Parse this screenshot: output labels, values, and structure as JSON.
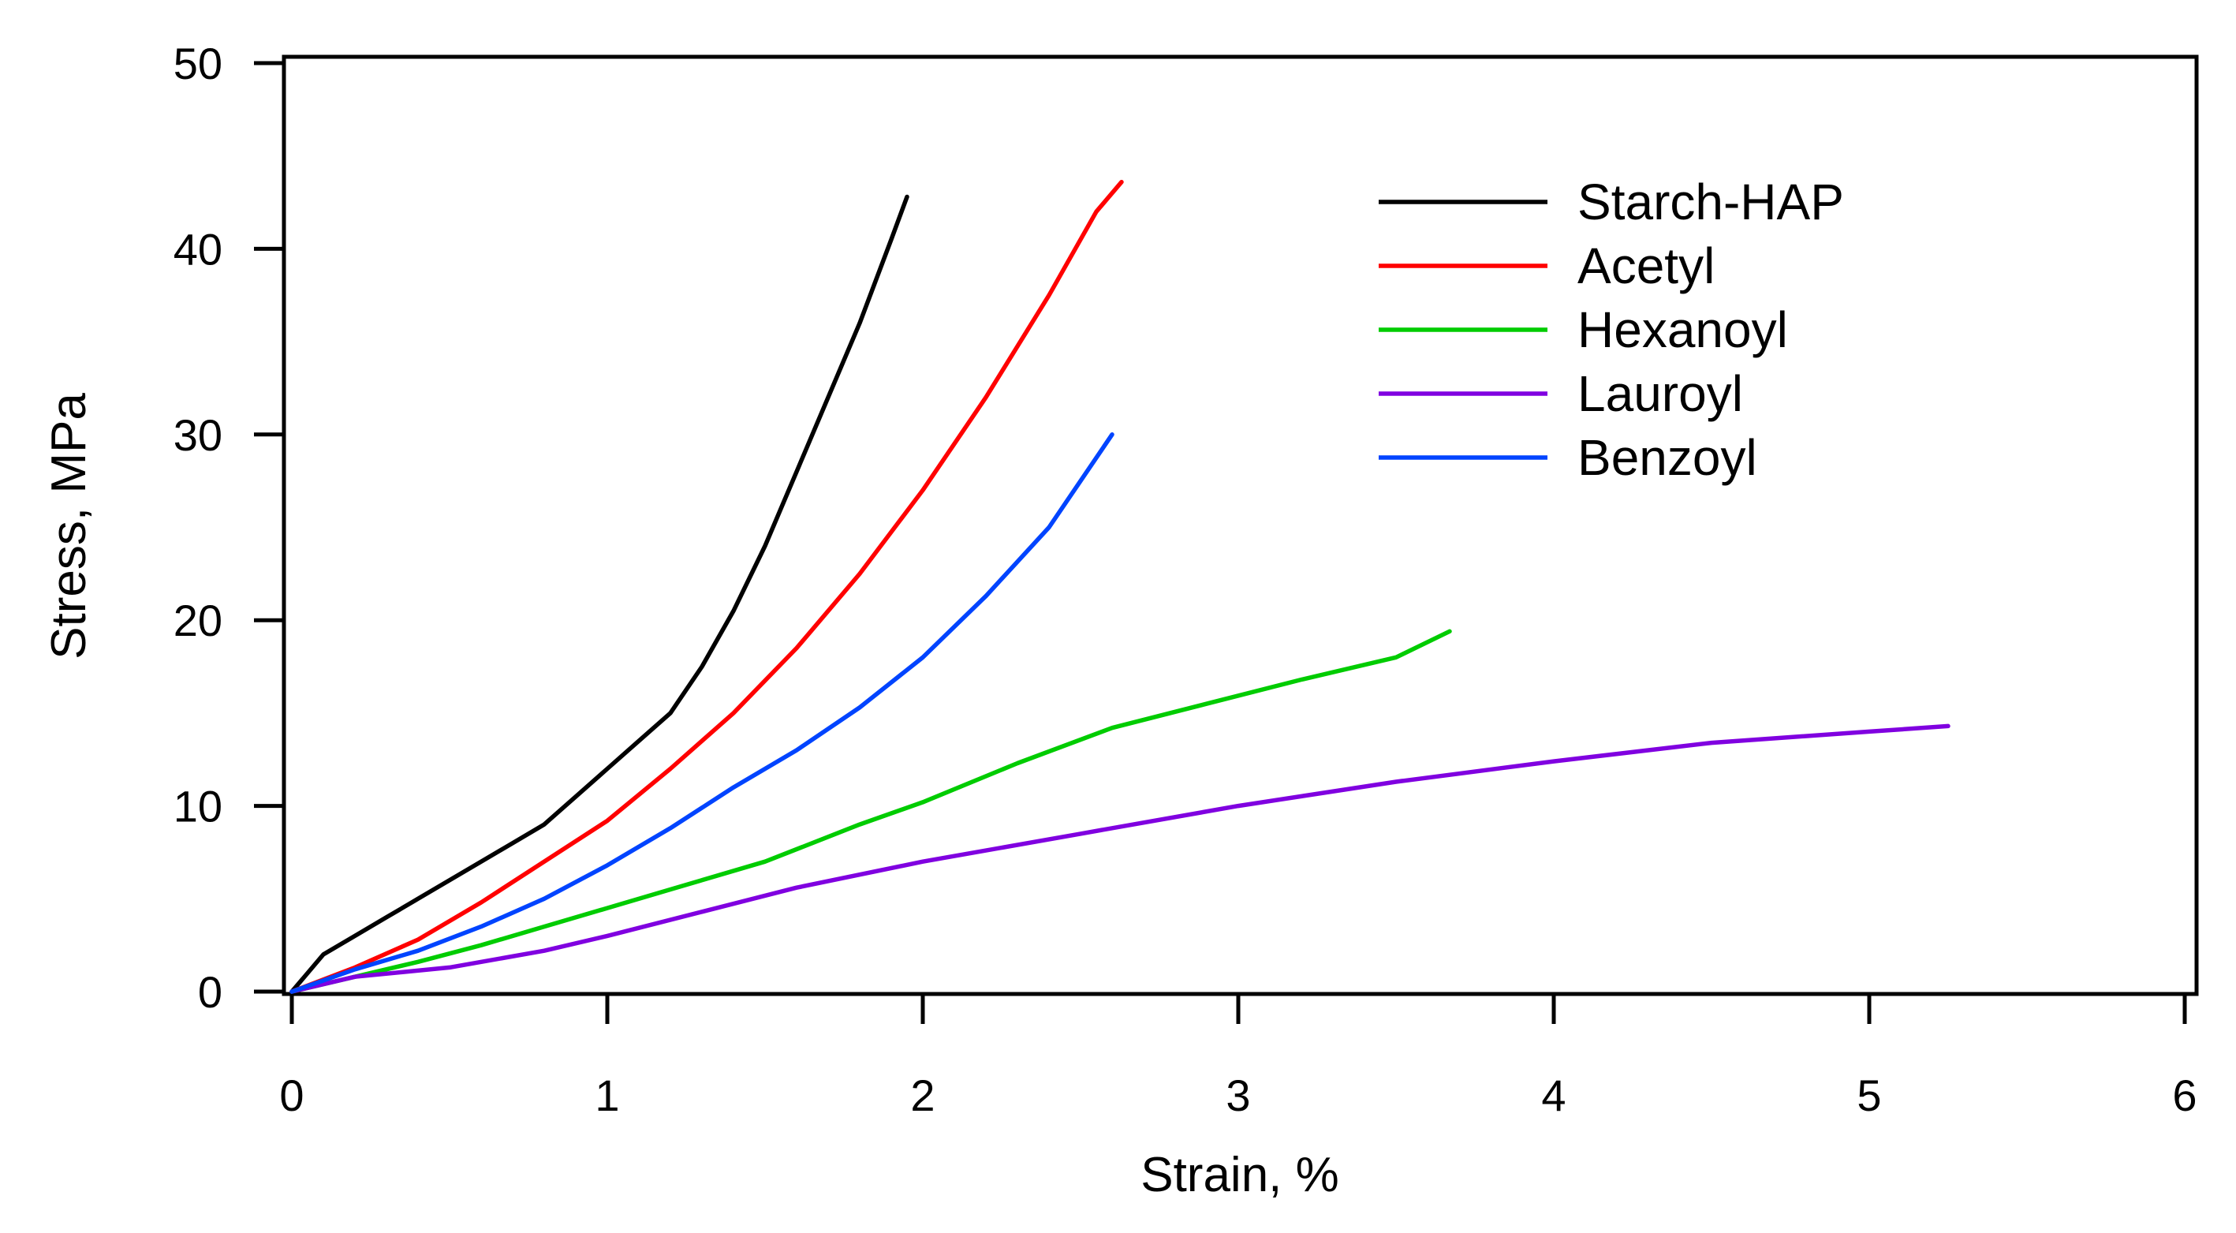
{
  "chart_data": {
    "type": "line",
    "title": "",
    "xlabel": "Strain, %",
    "ylabel": "Stress, MPa",
    "xlim": [
      0,
      6
    ],
    "ylim": [
      0,
      50
    ],
    "xticks": [
      "0",
      "1",
      "2",
      "3",
      "4",
      "5",
      "6"
    ],
    "yticks": [
      "0",
      "10",
      "20",
      "30",
      "40",
      "50"
    ],
    "grid": false,
    "legend_position": "top-right",
    "series": [
      {
        "name": "Starch-HAP",
        "color": "#000000",
        "points": [
          [
            0,
            0
          ],
          [
            0.05,
            1
          ],
          [
            0.1,
            2
          ],
          [
            0.2,
            3
          ],
          [
            0.3,
            4
          ],
          [
            0.4,
            5
          ],
          [
            0.5,
            6
          ],
          [
            0.6,
            7
          ],
          [
            0.7,
            8
          ],
          [
            0.8,
            9
          ],
          [
            0.9,
            10.5
          ],
          [
            1.0,
            12
          ],
          [
            1.1,
            13.5
          ],
          [
            1.2,
            15
          ],
          [
            1.3,
            17.5
          ],
          [
            1.4,
            20.5
          ],
          [
            1.5,
            24
          ],
          [
            1.6,
            28
          ],
          [
            1.7,
            32
          ],
          [
            1.8,
            36
          ],
          [
            1.9,
            40.5
          ],
          [
            1.95,
            42.8
          ]
        ]
      },
      {
        "name": "Acetyl",
        "color": "#ff0000",
        "points": [
          [
            0,
            0
          ],
          [
            0.2,
            1.3
          ],
          [
            0.4,
            2.8
          ],
          [
            0.6,
            4.8
          ],
          [
            0.8,
            7
          ],
          [
            1.0,
            9.2
          ],
          [
            1.2,
            12
          ],
          [
            1.4,
            15
          ],
          [
            1.6,
            18.5
          ],
          [
            1.8,
            22.5
          ],
          [
            2.0,
            27
          ],
          [
            2.2,
            32
          ],
          [
            2.4,
            37.5
          ],
          [
            2.55,
            42
          ],
          [
            2.63,
            43.6
          ]
        ]
      },
      {
        "name": "Hexanoyl",
        "color": "#00cc00",
        "points": [
          [
            0,
            0
          ],
          [
            0.2,
            0.8
          ],
          [
            0.4,
            1.6
          ],
          [
            0.6,
            2.5
          ],
          [
            0.8,
            3.5
          ],
          [
            1.0,
            4.5
          ],
          [
            1.2,
            5.5
          ],
          [
            1.5,
            7
          ],
          [
            1.8,
            9
          ],
          [
            2.0,
            10.2
          ],
          [
            2.3,
            12.3
          ],
          [
            2.6,
            14.2
          ],
          [
            2.9,
            15.5
          ],
          [
            3.2,
            16.8
          ],
          [
            3.5,
            18
          ],
          [
            3.67,
            19.4
          ]
        ]
      },
      {
        "name": "Lauroyl",
        "color": "#8000e0",
        "points": [
          [
            0,
            0
          ],
          [
            0.2,
            0.8
          ],
          [
            0.5,
            1.3
          ],
          [
            0.8,
            2.2
          ],
          [
            1.0,
            3
          ],
          [
            1.3,
            4.3
          ],
          [
            1.6,
            5.6
          ],
          [
            2.0,
            7
          ],
          [
            2.5,
            8.5
          ],
          [
            3.0,
            10
          ],
          [
            3.5,
            11.3
          ],
          [
            4.0,
            12.4
          ],
          [
            4.5,
            13.4
          ],
          [
            5.0,
            14
          ],
          [
            5.25,
            14.3
          ]
        ]
      },
      {
        "name": "Benzoyl",
        "color": "#0044ff",
        "points": [
          [
            0,
            0
          ],
          [
            0.2,
            1.2
          ],
          [
            0.4,
            2.2
          ],
          [
            0.6,
            3.5
          ],
          [
            0.8,
            5
          ],
          [
            1.0,
            6.8
          ],
          [
            1.2,
            8.8
          ],
          [
            1.4,
            11
          ],
          [
            1.6,
            13
          ],
          [
            1.8,
            15.3
          ],
          [
            2.0,
            18
          ],
          [
            2.2,
            21.3
          ],
          [
            2.4,
            25
          ],
          [
            2.6,
            30
          ]
        ]
      }
    ]
  }
}
